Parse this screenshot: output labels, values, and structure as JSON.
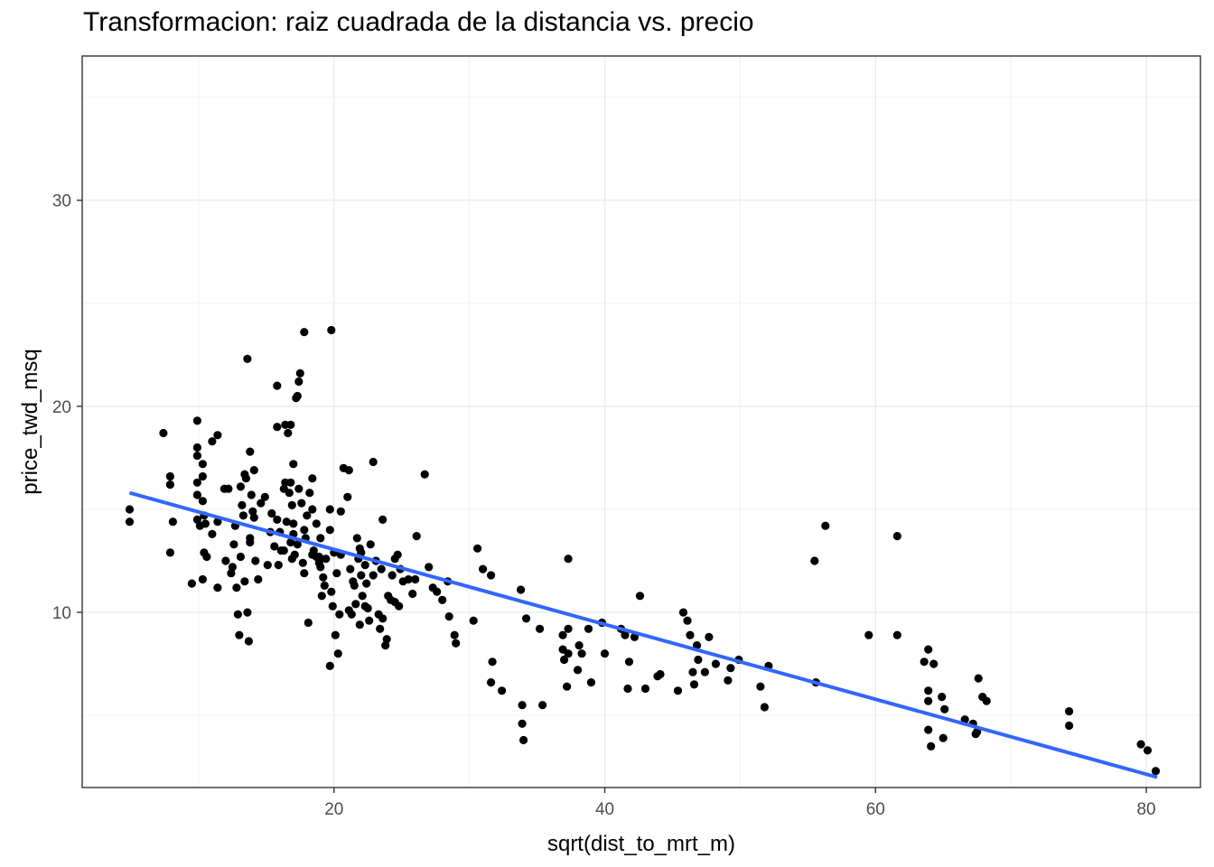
{
  "chart_data": {
    "type": "scatter",
    "title": "Transformacion: raiz cuadrada de la distancia vs. precio",
    "xlabel": "sqrt(dist_to_mrt_m)",
    "ylabel": "price_twd_msq",
    "xlim": [
      1.4,
      84.0
    ],
    "ylim": [
      1.5,
      37.0
    ],
    "xticks": [
      20,
      40,
      60,
      80
    ],
    "yticks": [
      10,
      20,
      30
    ],
    "grid": true,
    "point_color": "#000000",
    "trend_color": "#3366FF",
    "trend_line": {
      "x": [
        4.9,
        80.8
      ],
      "y": [
        15.8,
        2.0
      ]
    },
    "x": [
      4.9,
      4.9,
      7.4,
      7.9,
      7.9,
      7.9,
      8.1,
      9.5,
      9.9,
      9.9,
      9.9,
      9.9,
      9.9,
      10.3,
      10.3,
      10.3,
      10.3,
      11.0,
      11.0,
      11.4,
      10.1,
      10.4,
      10.4,
      10.5,
      10.6,
      9.9,
      11.4,
      11.9,
      12.0,
      12.8,
      12.9,
      12.4,
      13.0,
      13.2,
      13.1,
      13.5,
      13.4,
      14.1,
      14.1,
      13.8,
      13.6,
      13.7,
      12.5,
      13.3,
      13.9,
      13.8,
      14.2,
      14.4,
      15.8,
      16.3,
      16.1,
      15.9,
      16.5,
      16.8,
      16.9,
      16.9,
      17.0,
      17.4,
      17.0,
      17.1,
      17.6,
      18.4,
      17.3,
      17.0,
      17.7,
      18.1,
      18.7,
      18.2,
      17.8,
      18.5,
      18.9,
      19.1,
      19.3,
      19.9,
      20.0,
      19.7,
      19.2,
      18.9,
      19.8,
      20.4,
      20.1,
      20.5,
      20.3,
      21.2,
      21.3,
      21.5,
      21.6,
      21.9,
      22.0,
      22.3,
      22.1,
      22.5,
      22.6,
      22.9,
      23.1,
      23.5,
      23.4,
      23.8,
      23.9,
      24.0,
      24.3,
      24.5,
      24.7,
      24.9,
      25.1,
      25.5,
      26.1,
      26.7,
      27.0,
      27.3,
      27.6,
      28.0,
      28.4,
      28.5,
      28.9,
      29.0,
      30.3,
      30.6,
      31.0,
      31.6,
      31.7,
      31.6,
      32.4,
      33.8,
      33.9,
      33.9,
      34.0,
      34.2,
      35.2,
      35.4,
      36.9,
      36.9,
      37.0,
      37.2,
      37.3,
      37.3,
      37.3,
      38.0,
      38.3,
      38.1,
      38.8,
      39.0,
      39.8,
      40.0,
      41.2,
      41.7,
      41.8,
      41.5,
      42.2,
      42.6,
      43.0,
      43.9,
      44.1,
      45.4,
      45.8,
      46.1,
      46.3,
      46.5,
      46.6,
      46.8,
      46.9,
      47.4,
      47.7,
      48.2,
      49.1,
      49.3,
      49.9,
      51.5,
      51.8,
      52.1,
      55.5,
      55.6,
      56.3,
      59.5,
      61.6,
      61.6,
      63.6,
      63.9,
      63.9,
      63.9,
      63.9,
      64.1,
      64.3,
      64.9,
      65.0,
      65.1,
      66.6,
      67.2,
      67.4,
      67.6,
      67.5,
      67.9,
      68.2,
      74.3,
      74.3,
      79.6,
      80.1,
      80.7,
      19.8,
      15.8,
      17.8,
      13.6,
      17.5,
      17.4,
      17.3,
      17.2,
      11.4,
      16.4,
      16.6,
      20.7,
      21.1,
      12.2,
      13.8,
      14.6,
      15.4,
      16.0,
      16.8,
      17.9,
      19.0,
      20.5,
      21.8,
      22.7,
      23.6,
      24.8,
      12.7,
      15.1,
      18.4,
      20.2,
      22.4,
      24.2,
      13.1,
      15.6,
      18.0,
      21.4,
      23.3,
      26.0,
      14.0,
      16.4,
      19.4,
      21.1,
      23.6,
      15.3,
      17.8,
      19.7,
      22.0,
      25.8,
      12.6,
      16.8,
      19.7,
      21.7,
      24.5,
      13.4,
      16.3,
      18.7,
      21.9,
      15.8,
      19.0,
      22.9,
      14.9,
      18.4,
      21.0,
      16.7,
      22.3
    ],
    "y": [
      14.4,
      15.0,
      18.7,
      16.6,
      16.2,
      12.9,
      14.4,
      11.4,
      19.3,
      18.0,
      17.6,
      16.3,
      15.7,
      17.2,
      16.6,
      15.4,
      11.6,
      18.3,
      13.8,
      11.2,
      14.2,
      12.9,
      14.7,
      14.3,
      12.7,
      14.5,
      14.4,
      16.0,
      12.5,
      11.2,
      9.9,
      11.9,
      8.9,
      15.2,
      12.7,
      16.5,
      16.7,
      16.9,
      14.6,
      13.4,
      10.0,
      8.6,
      12.2,
      14.7,
      15.7,
      13.6,
      12.5,
      11.6,
      19.0,
      16.0,
      13.0,
      12.3,
      14.4,
      19.1,
      15.2,
      12.6,
      17.2,
      16.0,
      14.3,
      12.8,
      15.3,
      15.0,
      13.3,
      13.8,
      12.4,
      9.5,
      12.7,
      15.8,
      14.0,
      13.0,
      12.4,
      10.8,
      11.3,
      10.3,
      12.9,
      7.4,
      11.7,
      12.7,
      11.0,
      9.9,
      8.9,
      12.8,
      8.0,
      12.1,
      9.9,
      11.3,
      10.4,
      9.4,
      12.9,
      12.3,
      10.8,
      10.2,
      9.6,
      11.8,
      12.5,
      12.1,
      9.2,
      8.4,
      8.7,
      10.8,
      11.8,
      10.5,
      12.8,
      12.1,
      11.5,
      11.6,
      13.7,
      16.7,
      12.2,
      11.2,
      11.0,
      10.6,
      11.5,
      9.8,
      8.9,
      8.5,
      9.6,
      13.1,
      12.1,
      11.8,
      7.6,
      6.6,
      6.2,
      11.1,
      5.5,
      4.6,
      3.8,
      9.7,
      9.2,
      5.5,
      8.9,
      8.2,
      7.7,
      6.4,
      9.2,
      8.0,
      12.6,
      7.2,
      8.0,
      8.4,
      9.2,
      6.6,
      9.5,
      8.0,
      9.2,
      6.3,
      7.6,
      8.9,
      8.8,
      10.8,
      6.3,
      6.9,
      7.0,
      6.2,
      10.0,
      9.6,
      8.9,
      7.1,
      6.5,
      8.4,
      7.7,
      7.1,
      8.8,
      7.5,
      6.7,
      7.3,
      7.7,
      6.4,
      5.4,
      7.4,
      12.5,
      6.6,
      14.2,
      8.9,
      8.9,
      13.7,
      7.6,
      8.2,
      6.2,
      5.7,
      4.3,
      3.5,
      7.5,
      5.9,
      3.9,
      5.3,
      4.8,
      4.6,
      4.1,
      6.8,
      4.2,
      5.9,
      5.7,
      5.2,
      4.5,
      3.6,
      3.3,
      2.3,
      23.7,
      21.0,
      23.6,
      22.3,
      21.6,
      21.2,
      20.5,
      20.4,
      18.6,
      19.1,
      18.7,
      17.0,
      16.9,
      16.0,
      17.8,
      15.3,
      14.8,
      13.9,
      13.4,
      13.6,
      12.2,
      14.9,
      12.6,
      13.3,
      14.5,
      10.3,
      14.2,
      12.3,
      12.8,
      11.9,
      11.4,
      10.6,
      16.1,
      13.2,
      14.7,
      11.5,
      9.9,
      11.6,
      14.9,
      16.3,
      12.6,
      10.1,
      9.7,
      13.9,
      11.9,
      14.0,
      11.8,
      10.9,
      13.3,
      16.3,
      15.0,
      13.6,
      12.6,
      11.5,
      13.0,
      14.3,
      13.1,
      14.5,
      13.6,
      17.3,
      15.6,
      16.5,
      15.6,
      15.8,
      10.3
    ]
  }
}
